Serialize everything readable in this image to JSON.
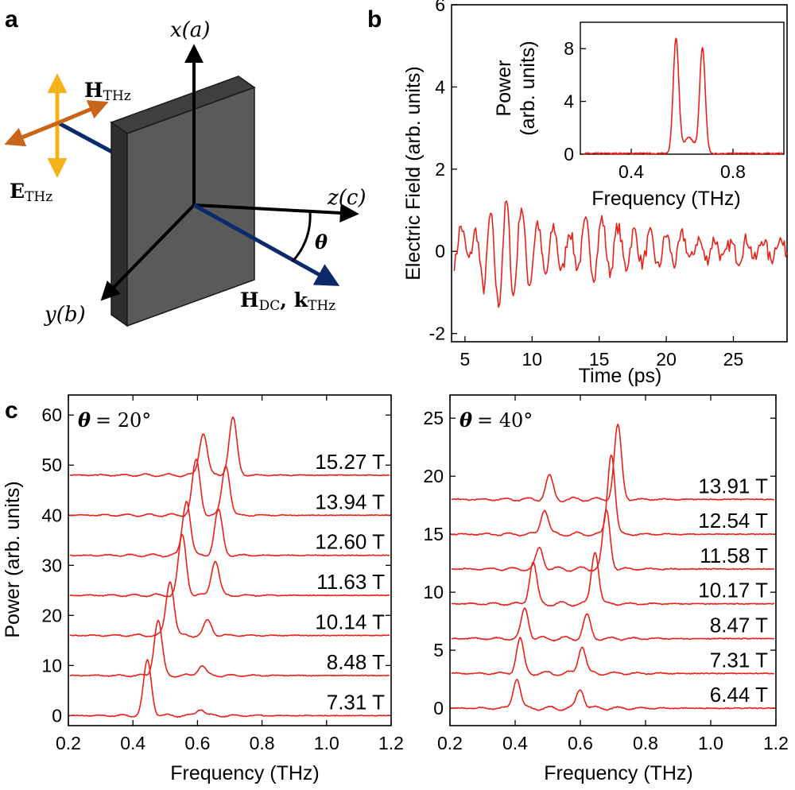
{
  "panels": {
    "a": "a",
    "b": "b",
    "c": "c"
  },
  "diagram": {
    "axis_x": "x(a)",
    "axis_y": "y(b)",
    "axis_z": "z(c)",
    "theta": "θ",
    "e_thz": "E",
    "e_thz_sub": "THz",
    "h_thz": "H",
    "h_thz_sub": "THz",
    "h_dc": "H",
    "h_dc_sub": "DC",
    "k_thz": "k",
    "k_thz_sub": "THz",
    "colors": {
      "sample": "#5a5a5a",
      "sample_top": "#3f3f3f",
      "sample_side": "#2e2e2e",
      "e_field": "#f5b31b",
      "h_field": "#c8651b",
      "propagation": "#0b2a6b"
    }
  },
  "chart_data": [
    {
      "id": "b-main",
      "type": "line",
      "xlabel": "Time (ps)",
      "ylabel": "Electric Field (arb. units)",
      "xlim": [
        4,
        29
      ],
      "ylim": [
        -2.2,
        6
      ],
      "xticks": [
        5,
        10,
        15,
        20,
        25
      ],
      "yticks": [
        -2,
        0,
        2,
        4,
        6
      ],
      "color": "#e8211a",
      "x_start": 4.2,
      "x_end": 29,
      "x_step": 0.1,
      "trace_extrema": [
        {
          "t": 4.2,
          "v": -0.3
        },
        {
          "t": 4.7,
          "v": 0.6
        },
        {
          "t": 5.3,
          "v": -0.2
        },
        {
          "t": 5.8,
          "v": 0.5
        },
        {
          "t": 6.4,
          "v": -0.9
        },
        {
          "t": 6.9,
          "v": 0.9
        },
        {
          "t": 7.5,
          "v": -1.3
        },
        {
          "t": 8.1,
          "v": 1.2
        },
        {
          "t": 8.6,
          "v": -1.1
        },
        {
          "t": 9.2,
          "v": 1.1
        },
        {
          "t": 9.8,
          "v": -0.8
        },
        {
          "t": 10.4,
          "v": 0.7
        },
        {
          "t": 11.0,
          "v": -0.6
        },
        {
          "t": 11.6,
          "v": 0.6
        },
        {
          "t": 12.2,
          "v": -0.5
        },
        {
          "t": 12.8,
          "v": 0.5
        },
        {
          "t": 13.4,
          "v": -0.4
        },
        {
          "t": 14.0,
          "v": 0.7
        },
        {
          "t": 14.6,
          "v": -0.6
        },
        {
          "t": 15.2,
          "v": 0.8
        },
        {
          "t": 15.8,
          "v": -0.5
        },
        {
          "t": 16.4,
          "v": 0.6
        },
        {
          "t": 17.0,
          "v": -0.4
        },
        {
          "t": 17.6,
          "v": 0.5
        },
        {
          "t": 18.2,
          "v": -0.3
        },
        {
          "t": 18.8,
          "v": 0.4
        },
        {
          "t": 19.4,
          "v": -0.4
        },
        {
          "t": 20.0,
          "v": 0.4
        },
        {
          "t": 20.6,
          "v": -0.3
        },
        {
          "t": 21.2,
          "v": 0.4
        },
        {
          "t": 21.8,
          "v": -0.2
        },
        {
          "t": 22.4,
          "v": 0.3
        },
        {
          "t": 23.0,
          "v": -0.2
        },
        {
          "t": 23.6,
          "v": 0.3
        },
        {
          "t": 24.2,
          "v": -0.2
        },
        {
          "t": 24.8,
          "v": 0.2
        },
        {
          "t": 25.4,
          "v": -0.2
        },
        {
          "t": 26.0,
          "v": 0.3
        },
        {
          "t": 26.6,
          "v": -0.2
        },
        {
          "t": 27.2,
          "v": 0.3
        },
        {
          "t": 27.8,
          "v": -0.2
        },
        {
          "t": 28.4,
          "v": 0.3
        },
        {
          "t": 29.0,
          "v": 0.0
        }
      ],
      "noise_amplitude": 0.18
    },
    {
      "id": "b-inset",
      "type": "line",
      "xlabel": "Frequency (THz)",
      "ylabel": "Power",
      "ylabel2": "(arb. units)",
      "xlim": [
        0.2,
        1.0
      ],
      "ylim": [
        0,
        10
      ],
      "xticks": [
        0.4,
        0.8
      ],
      "yticks": [
        0,
        4,
        8
      ],
      "color": "#e8211a",
      "peaks": [
        {
          "f": 0.576,
          "height": 8.7,
          "width": 0.011
        },
        {
          "f": 0.68,
          "height": 8.0,
          "width": 0.011
        },
        {
          "f": 0.627,
          "height": 1.2,
          "width": 0.02
        }
      ]
    },
    {
      "id": "c-left",
      "type": "line",
      "annotation_theta": "θ",
      "annotation_value": "= 20°",
      "xlabel": "Frequency (THz)",
      "ylabel": "Power (arb. units)",
      "xlim": [
        0.2,
        1.2
      ],
      "ylim": [
        -2,
        64
      ],
      "xticks": [
        0.2,
        0.4,
        0.6,
        0.8,
        1.0,
        1.2
      ],
      "xtick_labels": [
        "0.2",
        "0.4",
        "0.6",
        "0.8",
        "1.0",
        "1.2"
      ],
      "yticks": [
        0,
        10,
        20,
        30,
        40,
        50,
        60
      ],
      "color": "#e8211a",
      "series": [
        {
          "label": "7.31 T",
          "offset": 0,
          "peaks": [
            {
              "f": 0.445,
              "h": 11
            },
            {
              "f": 0.61,
              "h": 1.4
            }
          ]
        },
        {
          "label": "8.48 T",
          "offset": 8,
          "peaks": [
            {
              "f": 0.478,
              "h": 11
            },
            {
              "f": 0.613,
              "h": 2.0
            }
          ]
        },
        {
          "label": "10.14 T",
          "offset": 16,
          "peaks": [
            {
              "f": 0.515,
              "h": 11
            },
            {
              "f": 0.632,
              "h": 3.0
            }
          ]
        },
        {
          "label": "11.63 T",
          "offset": 24,
          "peaks": [
            {
              "f": 0.553,
              "h": 12
            },
            {
              "f": 0.655,
              "h": 7.0
            }
          ]
        },
        {
          "label": "12.60 T",
          "offset": 32,
          "peaks": [
            {
              "f": 0.566,
              "h": 11
            },
            {
              "f": 0.665,
              "h": 9.0
            }
          ]
        },
        {
          "label": "13.94 T",
          "offset": 40,
          "peaks": [
            {
              "f": 0.596,
              "h": 11
            },
            {
              "f": 0.688,
              "h": 10.0
            }
          ]
        },
        {
          "label": "15.27 T",
          "offset": 48,
          "peaks": [
            {
              "f": 0.618,
              "h": 8.5
            },
            {
              "f": 0.71,
              "h": 11.5
            }
          ]
        }
      ]
    },
    {
      "id": "c-right",
      "type": "line",
      "annotation_theta": "θ",
      "annotation_value": "= 40°",
      "xlabel": "Frequency (THz)",
      "ylabel": "",
      "xlim": [
        0.2,
        1.2
      ],
      "ylim": [
        -1.5,
        27
      ],
      "xticks": [
        0.2,
        0.4,
        0.6,
        0.8,
        1.0,
        1.2
      ],
      "xtick_labels": [
        "0.2",
        "0.4",
        "0.6",
        "0.8",
        "1.0",
        "1.2"
      ],
      "yticks": [
        0,
        5,
        10,
        15,
        20,
        25
      ],
      "color": "#e8211a",
      "series": [
        {
          "label": "6.44 T",
          "offset": 0,
          "peaks": [
            {
              "f": 0.405,
              "h": 2.6
            },
            {
              "f": 0.6,
              "h": 1.7
            }
          ]
        },
        {
          "label": "7.31 T",
          "offset": 3,
          "peaks": [
            {
              "f": 0.415,
              "h": 3.0
            },
            {
              "f": 0.605,
              "h": 2.4
            }
          ]
        },
        {
          "label": "8.47 T",
          "offset": 6,
          "peaks": [
            {
              "f": 0.43,
              "h": 2.6
            },
            {
              "f": 0.62,
              "h": 2.0
            }
          ]
        },
        {
          "label": "10.17 T",
          "offset": 9,
          "peaks": [
            {
              "f": 0.455,
              "h": 3.6
            },
            {
              "f": 0.645,
              "h": 4.6
            }
          ]
        },
        {
          "label": "11.58 T",
          "offset": 12,
          "peaks": [
            {
              "f": 0.475,
              "h": 1.8
            },
            {
              "f": 0.68,
              "h": 5.0
            }
          ]
        },
        {
          "label": "12.54 T",
          "offset": 15,
          "peaks": [
            {
              "f": 0.49,
              "h": 2.2
            },
            {
              "f": 0.695,
              "h": 7.0
            }
          ]
        },
        {
          "label": "13.91 T",
          "offset": 18,
          "peaks": [
            {
              "f": 0.505,
              "h": 2.0
            },
            {
              "f": 0.715,
              "h": 6.4
            }
          ]
        }
      ]
    }
  ]
}
